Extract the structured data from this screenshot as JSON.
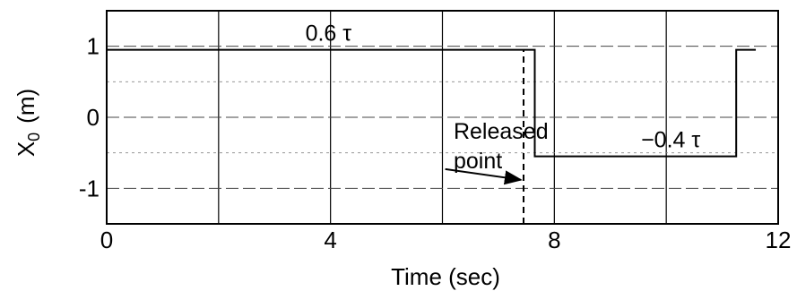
{
  "chart_data": {
    "type": "line",
    "xlabel": "Time  (sec)",
    "ylabel_main": "X",
    "ylabel_sub": "0",
    "ylabel_unit": "(m)",
    "xlim": [
      0,
      12
    ],
    "ylim": [
      -1.5,
      1.5
    ],
    "x_ticks": [
      0,
      4,
      8,
      12
    ],
    "x_tick_labels": [
      "0",
      "4",
      "8",
      "12"
    ],
    "y_ticks": [
      1,
      0,
      -1
    ],
    "y_tick_labels": [
      "1",
      "0",
      "-1"
    ],
    "vertical_gridlines": [
      2,
      4,
      6,
      8,
      10
    ],
    "horizontal_gridlines": [
      1,
      0.5,
      0,
      -0.5,
      -1
    ],
    "grid": true,
    "series": [
      {
        "x": [
          0,
          7.65,
          7.65,
          11.25,
          11.25,
          11.6
        ],
        "y": [
          0.95,
          0.95,
          -0.55,
          -0.55,
          0.95,
          0.95
        ],
        "style": "solid"
      }
    ],
    "release_marker": {
      "x": 7.45,
      "y_from": -1.5,
      "y_to": 0.95,
      "style": "dashed"
    },
    "annotations": [
      {
        "text": "0.6 τ",
        "x": 3.55,
        "y": 1.08
      },
      {
        "text": "−0.4 τ",
        "x": 9.55,
        "y": -0.42
      },
      {
        "text": "Released",
        "x": 6.2,
        "y": -0.3
      },
      {
        "text": "point",
        "x": 6.2,
        "y": -0.72
      }
    ],
    "arrow": {
      "from": [
        6.05,
        -0.73
      ],
      "to": [
        7.4,
        -0.88
      ]
    }
  }
}
